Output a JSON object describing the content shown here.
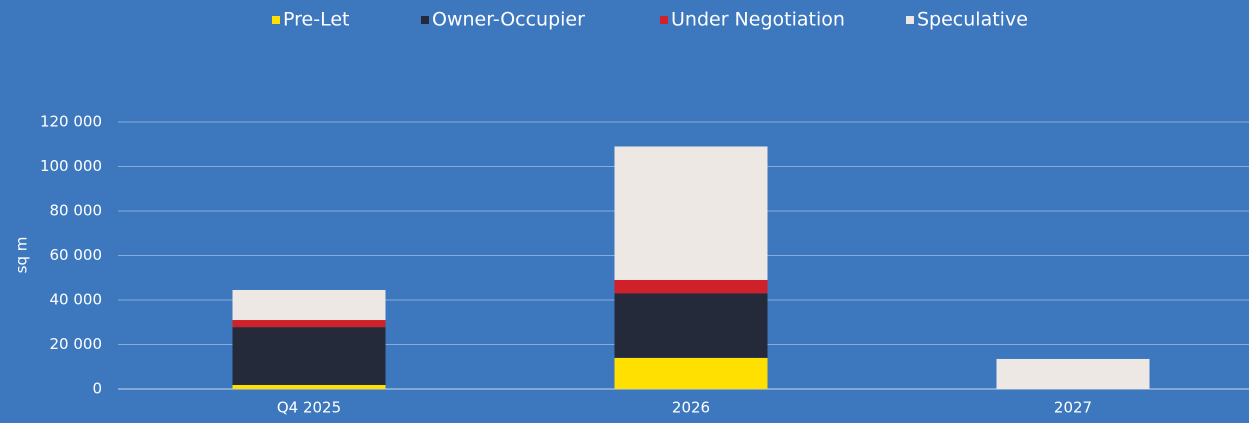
{
  "chart_data": {
    "type": "stacked_bar",
    "categories": [
      "Q4 2025",
      "2026",
      "2027"
    ],
    "series": [
      {
        "name": "Pre-Let",
        "color": "#ffe000",
        "values": [
          1800,
          14000,
          0
        ]
      },
      {
        "name": "Owner-Occupier",
        "color": "#252a3b",
        "values": [
          26000,
          29000,
          0
        ]
      },
      {
        "name": "Under Negotiation",
        "color": "#d0202a",
        "values": [
          3200,
          6000,
          0
        ]
      },
      {
        "name": "Speculative",
        "color": "#ede8e3",
        "values": [
          13500,
          60000,
          13500
        ]
      }
    ],
    "y_label": "sq m",
    "ylim": [
      0,
      120000
    ],
    "yticks": [
      0,
      {
        "value": 20000,
        "label": "20 000"
      },
      {
        "value": 40000,
        "label": "40 000"
      },
      {
        "value": 60000,
        "label": "60 000"
      },
      {
        "value": 80000,
        "label": "80 000"
      },
      {
        "value": 100000,
        "label": "100 000"
      },
      {
        "value": 120000,
        "label": "120 000"
      }
    ],
    "grid": true,
    "legend": "top"
  }
}
